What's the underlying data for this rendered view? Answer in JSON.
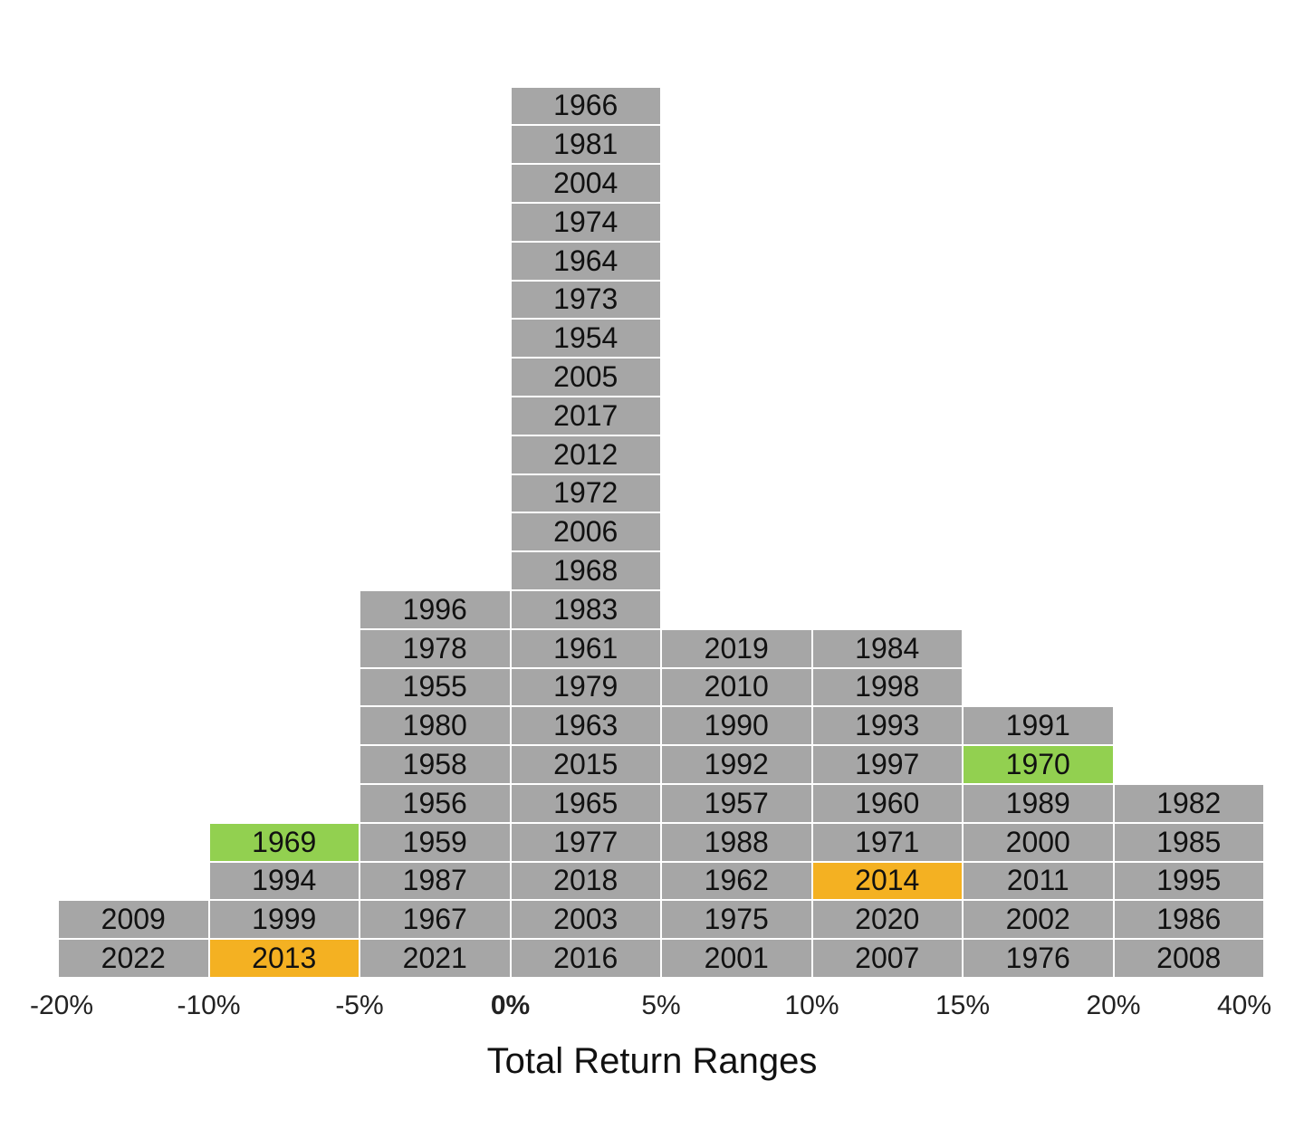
{
  "chart_data": {
    "type": "table",
    "title": "",
    "xlabel": "Total Return Ranges",
    "ylabel": "",
    "x_ticks": [
      "-20%",
      "-10%",
      "-5%",
      "0%",
      "5%",
      "10%",
      "15%",
      "20%",
      "40%"
    ],
    "bold_tick": "0%",
    "colors": {
      "default": "#a6a6a6",
      "green": "#92d050",
      "orange": "#f4b122",
      "border": "#ffffff"
    },
    "bins": [
      {
        "range": "-20% to -10%",
        "years_bottom_to_top": [
          "2022",
          "2009"
        ]
      },
      {
        "range": "-10% to -5%",
        "years_bottom_to_top": [
          "2013",
          "1999",
          "1994",
          "1969"
        ]
      },
      {
        "range": "-5% to 0%",
        "years_bottom_to_top": [
          "2021",
          "1967",
          "1987",
          "1959",
          "1956",
          "1958",
          "1980",
          "1955",
          "1978",
          "1996"
        ]
      },
      {
        "range": "0% to 5%",
        "years_bottom_to_top": [
          "2016",
          "2003",
          "2018",
          "1977",
          "1965",
          "2015",
          "1963",
          "1979",
          "1961",
          "1983",
          "1968",
          "2006",
          "1972",
          "2012",
          "2017",
          "2005",
          "1954",
          "1973",
          "1964",
          "1974",
          "2004",
          "1981",
          "1966"
        ]
      },
      {
        "range": "5% to 10%",
        "years_bottom_to_top": [
          "2001",
          "1975",
          "1962",
          "1988",
          "1957",
          "1992",
          "1990",
          "2010",
          "2019"
        ]
      },
      {
        "range": "10% to 15%",
        "years_bottom_to_top": [
          "2007",
          "2020",
          "2014",
          "1971",
          "1960",
          "1997",
          "1993",
          "1998",
          "1984"
        ]
      },
      {
        "range": "15% to 20%",
        "years_bottom_to_top": [
          "1976",
          "2002",
          "2011",
          "2000",
          "1989",
          "1970",
          "1991"
        ]
      },
      {
        "range": "20% to 40%",
        "years_bottom_to_top": [
          "2008",
          "1986",
          "1995",
          "1985",
          "1982"
        ]
      }
    ],
    "highlights": {
      "1969": "green",
      "1970": "green",
      "2013": "orange",
      "2014": "orange"
    }
  }
}
